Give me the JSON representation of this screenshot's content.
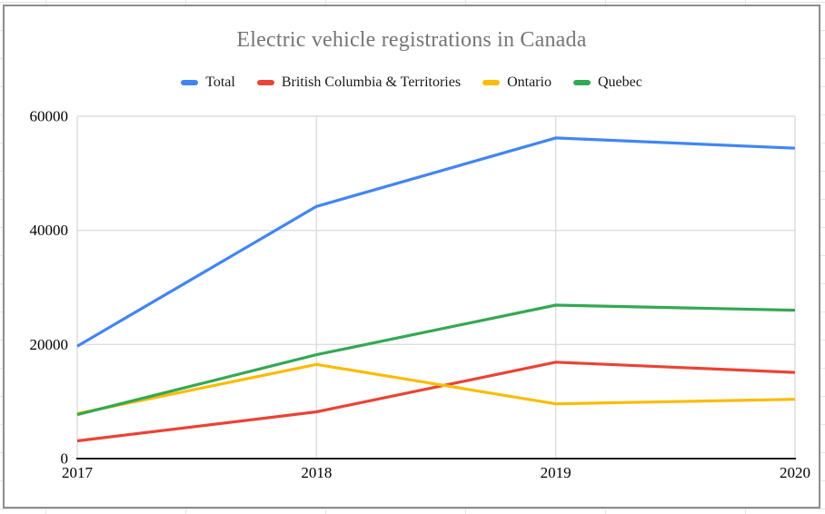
{
  "chart_data": {
    "type": "line",
    "title": "Electric vehicle registrations in Canada",
    "xlabel": "",
    "ylabel": "",
    "x_axis": {
      "labels": [
        "2017",
        "2018",
        "2019",
        "2020"
      ]
    },
    "y_axis": {
      "ticks": [
        0,
        20000,
        40000,
        60000
      ],
      "labels": [
        "0",
        "20000",
        "40000",
        "60000"
      ]
    },
    "ylim": [
      0,
      60000
    ],
    "grid": true,
    "legend_position": "top",
    "series": [
      {
        "name": "Total",
        "color": "#4285f4",
        "values": [
          19700,
          44200,
          56200,
          54400
        ]
      },
      {
        "name": "British Columbia & Territories",
        "color": "#ea4335",
        "values": [
          3100,
          8200,
          16900,
          15100
        ]
      },
      {
        "name": "Ontario",
        "color": "#fbbc04",
        "values": [
          7900,
          16500,
          9600,
          10400
        ]
      },
      {
        "name": "Quebec",
        "color": "#34a853",
        "values": [
          7700,
          18200,
          26900,
          26000
        ]
      }
    ],
    "colors": {
      "title": "#757575",
      "tick_label": "#000000",
      "legend_label": "#1a1a1a",
      "axis_line": "#212121",
      "gridline": "#dddddd",
      "chart_border": "#8d8d8d"
    }
  }
}
